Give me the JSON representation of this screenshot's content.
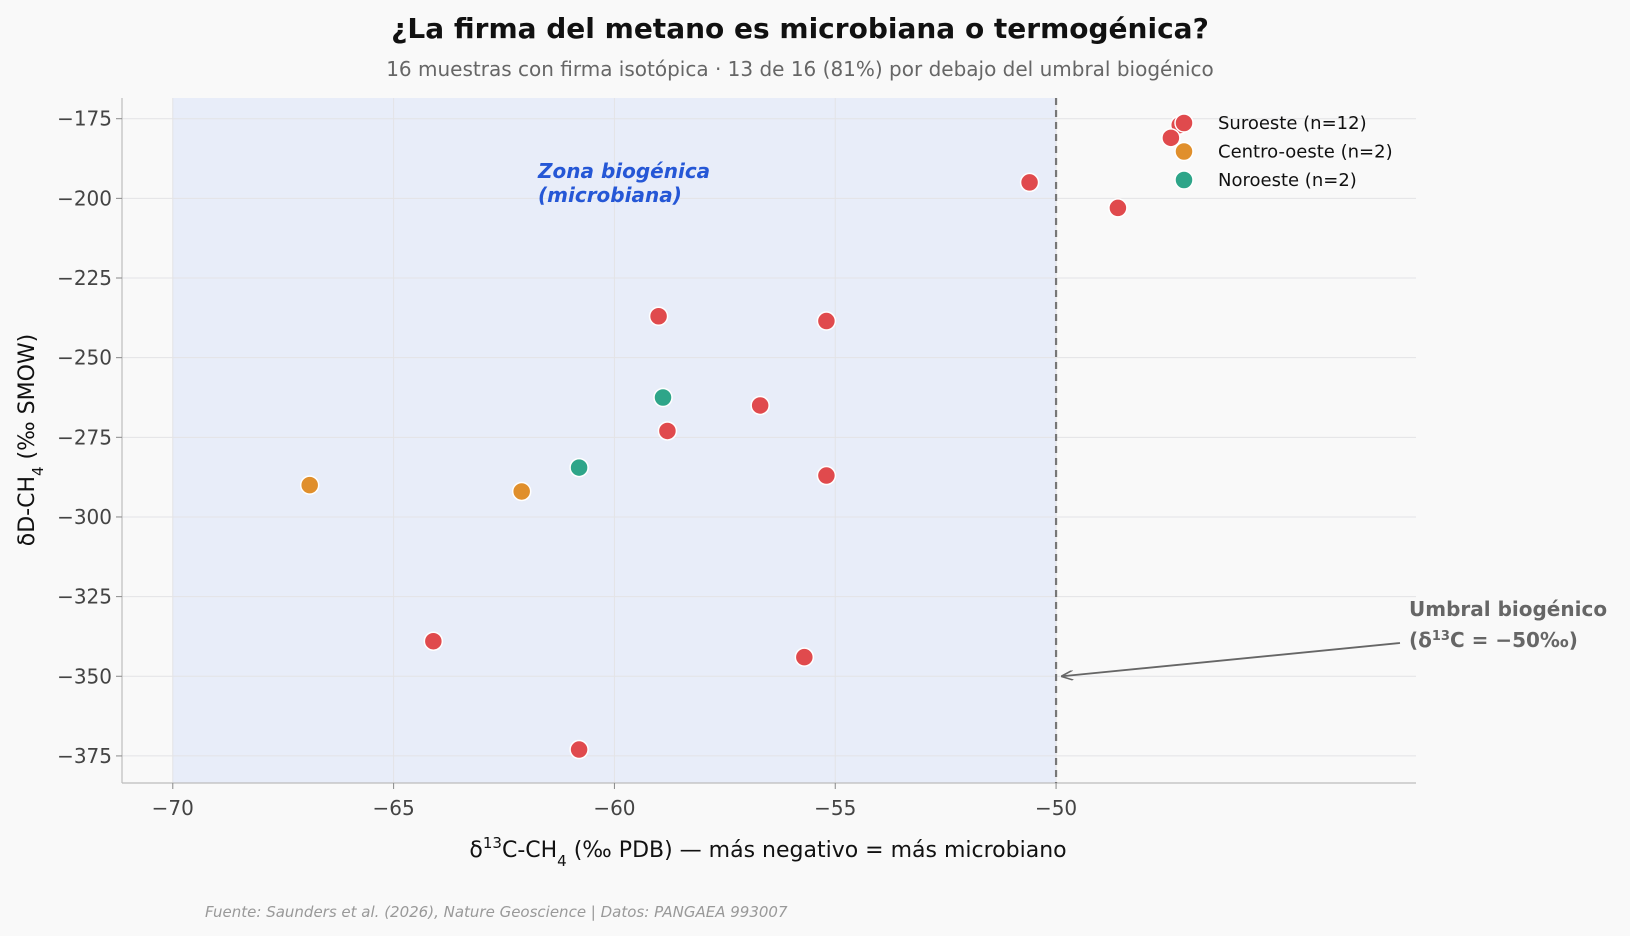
{
  "title": "¿La firma del metano es microbiana o termogénica?",
  "subtitle": "16 muestras con firma isotópica · 13 de 16 (81%) por debajo del umbral biogénico",
  "source": "Fuente: Saunders et al. (2026), Nature Geoscience | Datos: PANGAEA 993007",
  "chart_data": {
    "type": "scatter",
    "title": "¿La firma del metano es microbiana o termogénica?",
    "subtitle": "16 muestras con firma isotópica · 13 de 16 (81%) por debajo del umbral biogénico",
    "xlabel": {
      "pre": "δ",
      "sup": "13",
      "post": "C-CH",
      "sub": "4",
      "tail": " (‰ PDB) — más negativo = más microbiano"
    },
    "ylabel": {
      "pre": "δD-CH",
      "sub": "4",
      "post": " (‰ SMOW)"
    },
    "xlim": [
      -71.15,
      -41.85
    ],
    "ylim": [
      -383.5,
      -168.5
    ],
    "x_ticks": [
      -70,
      -65,
      -60,
      -55,
      -50
    ],
    "y_ticks": [
      -175,
      -200,
      -225,
      -250,
      -275,
      -300,
      -325,
      -350,
      -375
    ],
    "x_tick_labels": [
      "−70",
      "−65",
      "−60",
      "−55",
      "−50"
    ],
    "y_tick_labels": [
      "−175",
      "−200",
      "−225",
      "−250",
      "−275",
      "−300",
      "−325",
      "−350",
      "−375"
    ],
    "grid": true,
    "legend_position": "top-right",
    "biogenic_zone": {
      "x_range": [
        -70,
        -50
      ],
      "label_line1": "Zona biogénica",
      "label_line2": "(microbiana)",
      "color": "#e8edf9"
    },
    "threshold": {
      "x": -50,
      "label_line1": "Umbral biogénico",
      "label_line2": {
        "pre": "(δ",
        "sup": "13",
        "post": "C = −50‰)"
      },
      "arrow_y": -350
    },
    "series": [
      {
        "name": "Suroeste (n=12)",
        "color": "#e04a4d",
        "points": [
          {
            "x": -47.2,
            "y": -177
          },
          {
            "x": -47.4,
            "y": -181
          },
          {
            "x": -50.6,
            "y": -195
          },
          {
            "x": -48.6,
            "y": -203
          },
          {
            "x": -59.0,
            "y": -237
          },
          {
            "x": -55.2,
            "y": -238.5
          },
          {
            "x": -56.7,
            "y": -265
          },
          {
            "x": -58.8,
            "y": -273
          },
          {
            "x": -55.2,
            "y": -287
          },
          {
            "x": -64.1,
            "y": -339
          },
          {
            "x": -55.7,
            "y": -344
          },
          {
            "x": -60.8,
            "y": -373
          }
        ]
      },
      {
        "name": "Centro-oeste (n=2)",
        "color": "#e08f2c",
        "points": [
          {
            "x": -66.9,
            "y": -290
          },
          {
            "x": -62.1,
            "y": -292
          }
        ]
      },
      {
        "name": "Noroeste (n=2)",
        "color": "#2ea589",
        "points": [
          {
            "x": -58.9,
            "y": -262.5
          },
          {
            "x": -60.8,
            "y": -284.5
          }
        ]
      }
    ]
  }
}
